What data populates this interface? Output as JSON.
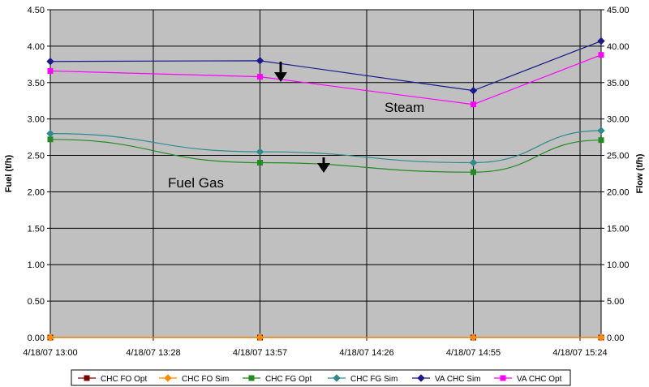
{
  "chart_data": {
    "type": "line",
    "x": [
      "4/18/07 13:00",
      "4/18/07 13:57",
      "4/18/07 14:55",
      "4/18/07 15:24"
    ],
    "x_ticks": [
      "4/18/07 13:00",
      "4/18/07 13:28",
      "4/18/07 13:57",
      "4/18/07 14:26",
      "4/18/07 14:55",
      "4/18/07 15:24"
    ],
    "ylabel_left": "Fuel (t/h)",
    "ylabel_right": "Flow (t/h)",
    "ylim_left": [
      0,
      4.5
    ],
    "ylim_right": [
      0,
      45
    ],
    "yticks_left": [
      "0.00",
      "0.50",
      "1.00",
      "1.50",
      "2.00",
      "2.50",
      "3.00",
      "3.50",
      "4.00",
      "4.50"
    ],
    "yticks_right": [
      "0.00",
      "5.00",
      "10.00",
      "15.00",
      "20.00",
      "25.00",
      "30.00",
      "35.00",
      "40.00",
      "45.00"
    ],
    "grid": true,
    "legend_position": "bottom",
    "series": [
      {
        "name": "CHC FO Opt",
        "axis": "left",
        "color": "#800000",
        "marker": "square",
        "values": [
          0,
          0,
          0,
          0
        ]
      },
      {
        "name": "CHC FO Sim",
        "axis": "left",
        "color": "#FF8C00",
        "marker": "diamond",
        "values": [
          0,
          0,
          0,
          0
        ]
      },
      {
        "name": "CHC FG Opt",
        "axis": "left",
        "color": "#228B22",
        "marker": "square",
        "values": [
          2.72,
          2.4,
          2.27,
          2.71
        ]
      },
      {
        "name": "CHC FG Sim",
        "axis": "left",
        "color": "#2E8B8B",
        "marker": "diamond",
        "values": [
          2.8,
          2.55,
          2.4,
          2.84
        ]
      },
      {
        "name": "VA CHC Sim",
        "axis": "right",
        "color": "#1A1A8C",
        "marker": "diamond",
        "values": [
          37.9,
          38.0,
          33.9,
          40.7
        ]
      },
      {
        "name": "VA CHC Opt",
        "axis": "right",
        "color": "#FF00FF",
        "marker": "square",
        "values": [
          36.6,
          35.8,
          32.0,
          38.8
        ]
      }
    ],
    "annotations": [
      "Steam",
      "Fuel Gas"
    ]
  },
  "colors": {
    "plot_background": "#C0C0C0",
    "gridline": "#000000",
    "arrow": "#000000"
  }
}
